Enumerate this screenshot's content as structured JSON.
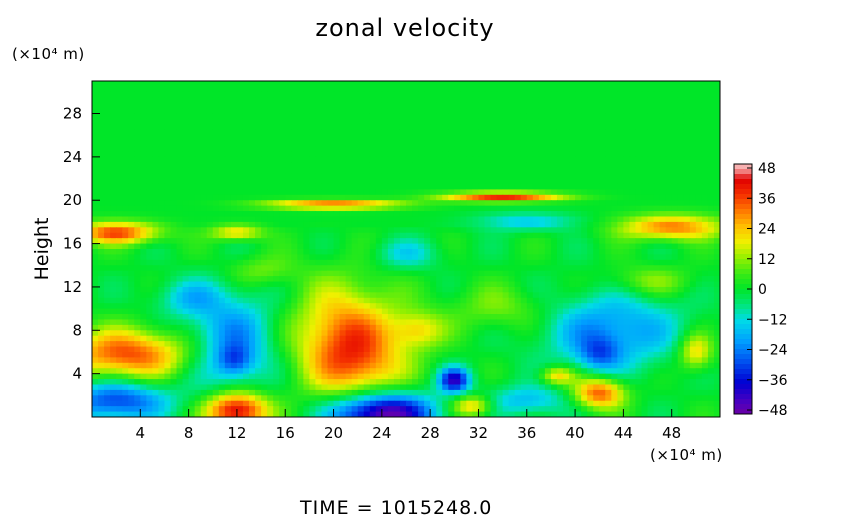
{
  "chart_data": {
    "type": "heatmap",
    "title": "zonal velocity",
    "ylabel": "Height",
    "xlabel": "",
    "x_unit_label": "(×10⁴ m)",
    "y_unit_label": "(×10⁴ m)",
    "xlim": [
      0,
      52
    ],
    "ylim": [
      0,
      31
    ],
    "x_ticks": [
      4,
      8,
      12,
      16,
      20,
      24,
      28,
      32,
      36,
      40,
      44,
      48
    ],
    "y_ticks": [
      4,
      8,
      12,
      16,
      20,
      24,
      28
    ],
    "colorbar": {
      "ticks": [
        48,
        36,
        24,
        12,
        0,
        -12,
        -24,
        -36,
        -48
      ],
      "range": [
        -48,
        48
      ]
    },
    "features": [
      {
        "x": 21.0,
        "y": 7.0,
        "sx": 3.0,
        "sy": 3.5,
        "value": 34
      },
      {
        "x": 23.0,
        "y": 4.5,
        "sx": 2.5,
        "sy": 2.0,
        "value": 10
      },
      {
        "x": 27.0,
        "y": 8.0,
        "sx": 1.5,
        "sy": 1.2,
        "value": 18
      },
      {
        "x": 24.0,
        "y": 0.3,
        "sx": 3.0,
        "sy": 1.4,
        "value": -50
      },
      {
        "x": 12.0,
        "y": 0.6,
        "sx": 1.8,
        "sy": 1.2,
        "value": 46
      },
      {
        "x": 3.0,
        "y": 5.8,
        "sx": 3.8,
        "sy": 1.6,
        "value": 34
      },
      {
        "x": 2.0,
        "y": 1.5,
        "sx": 3.0,
        "sy": 1.3,
        "value": -30
      },
      {
        "x": 11.5,
        "y": 7.0,
        "sx": 2.8,
        "sy": 3.2,
        "value": -22
      },
      {
        "x": 11.8,
        "y": 5.2,
        "sx": 1.0,
        "sy": 1.0,
        "value": -16
      },
      {
        "x": 43.0,
        "y": 8.0,
        "sx": 4.0,
        "sy": 2.5,
        "value": -22
      },
      {
        "x": 42.0,
        "y": 5.8,
        "sx": 1.2,
        "sy": 1.1,
        "value": -16
      },
      {
        "x": 42.0,
        "y": 2.2,
        "sx": 1.5,
        "sy": 1.0,
        "value": 34
      },
      {
        "x": 38.5,
        "y": 3.8,
        "sx": 1.0,
        "sy": 0.6,
        "value": 22
      },
      {
        "x": 30.0,
        "y": 3.4,
        "sx": 0.9,
        "sy": 0.8,
        "value": -38
      },
      {
        "x": 31.5,
        "y": 1.0,
        "sx": 1.2,
        "sy": 0.7,
        "value": 24
      },
      {
        "x": 36.0,
        "y": 1.5,
        "sx": 2.5,
        "sy": 1.0,
        "value": -16
      },
      {
        "x": 50.0,
        "y": 6.0,
        "sx": 1.0,
        "sy": 1.2,
        "value": 22
      },
      {
        "x": 34.0,
        "y": 10.0,
        "sx": 3.0,
        "sy": 1.5,
        "value": 10
      },
      {
        "x": 2.0,
        "y": 17.0,
        "sx": 2.5,
        "sy": 0.7,
        "value": 34
      },
      {
        "x": 48.0,
        "y": 17.5,
        "sx": 3.0,
        "sy": 0.8,
        "value": 30
      },
      {
        "x": 12.0,
        "y": 17.0,
        "sx": 1.5,
        "sy": 0.5,
        "value": 22
      },
      {
        "x": 36.0,
        "y": 18.0,
        "sx": 3.0,
        "sy": 0.6,
        "value": -14
      },
      {
        "x": 20.0,
        "y": 19.6,
        "sx": 4.0,
        "sy": 0.3,
        "value": 32
      },
      {
        "x": 34.0,
        "y": 20.3,
        "sx": 3.5,
        "sy": 0.3,
        "value": 38
      },
      {
        "x": 26.0,
        "y": 15.0,
        "sx": 2.0,
        "sy": 1.0,
        "value": -12
      },
      {
        "x": 8.0,
        "y": 11.0,
        "sx": 2.0,
        "sy": 1.2,
        "value": -12
      },
      {
        "x": 46.0,
        "y": 12.5,
        "sx": 2.5,
        "sy": 1.0,
        "value": 12
      },
      {
        "x": 14.0,
        "y": 13.5,
        "sx": 2.0,
        "sy": 1.0,
        "value": 10
      }
    ]
  },
  "footer": {
    "time_label": "TIME = 1015248.0"
  }
}
